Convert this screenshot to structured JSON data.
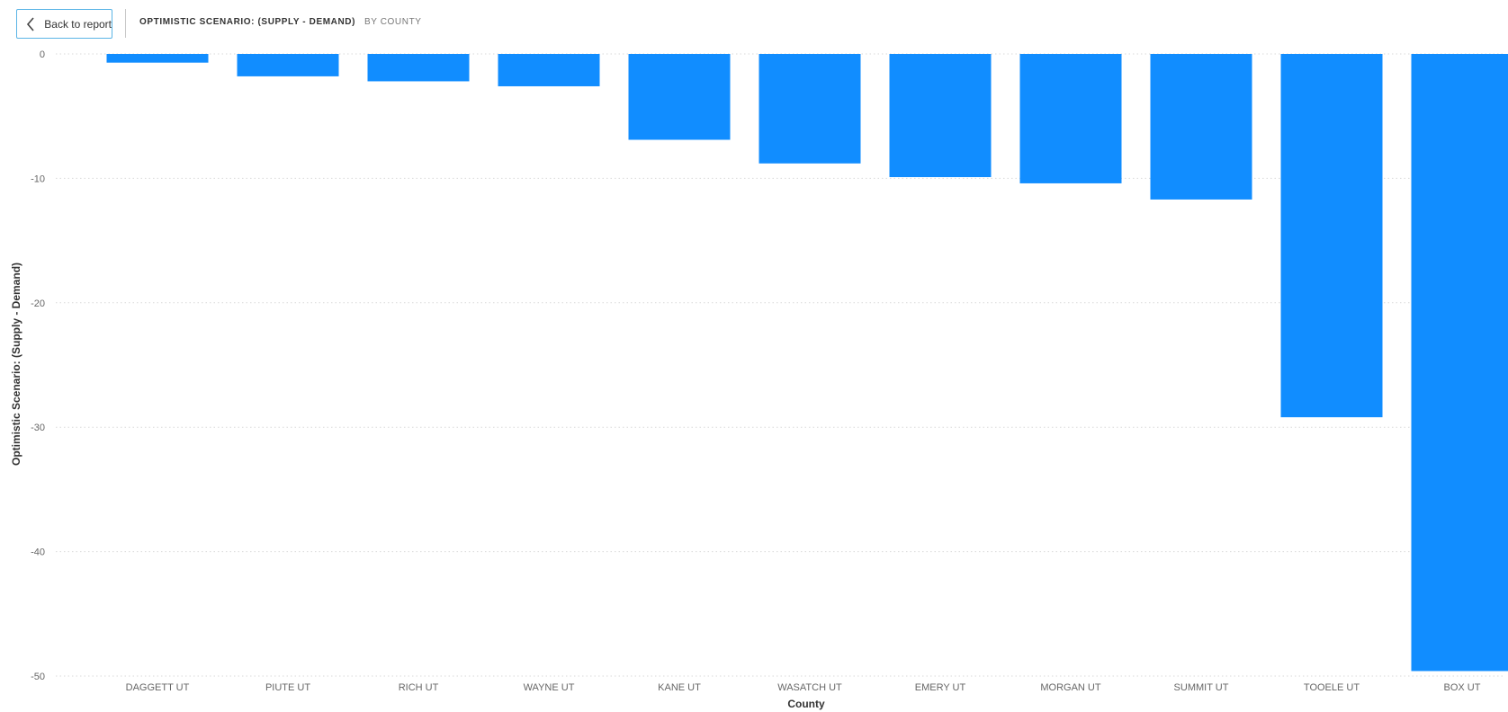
{
  "header": {
    "back_label": "Back to report",
    "title": "OPTIMISTIC SCENARIO: (SUPPLY - DEMAND)",
    "subtitle": "BY COUNTY"
  },
  "colors": {
    "bar": "#118dff",
    "grid": "#d9d9d9",
    "accent_border": "#5bb5e6"
  },
  "icons": {
    "back": "chevron-left-icon"
  },
  "chart_data": {
    "type": "bar",
    "title": "OPTIMISTIC SCENARIO: (SUPPLY - DEMAND)",
    "subtitle": "BY COUNTY",
    "xlabel": "County",
    "ylabel": "Optimistic Scenario: (Supply - Demand)",
    "categories": [
      "DAGGETT UT",
      "PIUTE UT",
      "RICH UT",
      "WAYNE UT",
      "KANE UT",
      "WASATCH UT",
      "EMERY UT",
      "MORGAN UT",
      "SUMMIT UT",
      "TOOELE UT",
      "BOX UT"
    ],
    "values": [
      -0.7,
      -1.8,
      -2.2,
      -2.6,
      -6.9,
      -8.8,
      -9.9,
      -10.4,
      -11.7,
      -29.2,
      -49.6
    ],
    "ylim": [
      -50,
      0
    ],
    "yticks": [
      0,
      -10,
      -20,
      -30,
      -40,
      -50
    ],
    "grid": true,
    "legend": "none"
  }
}
